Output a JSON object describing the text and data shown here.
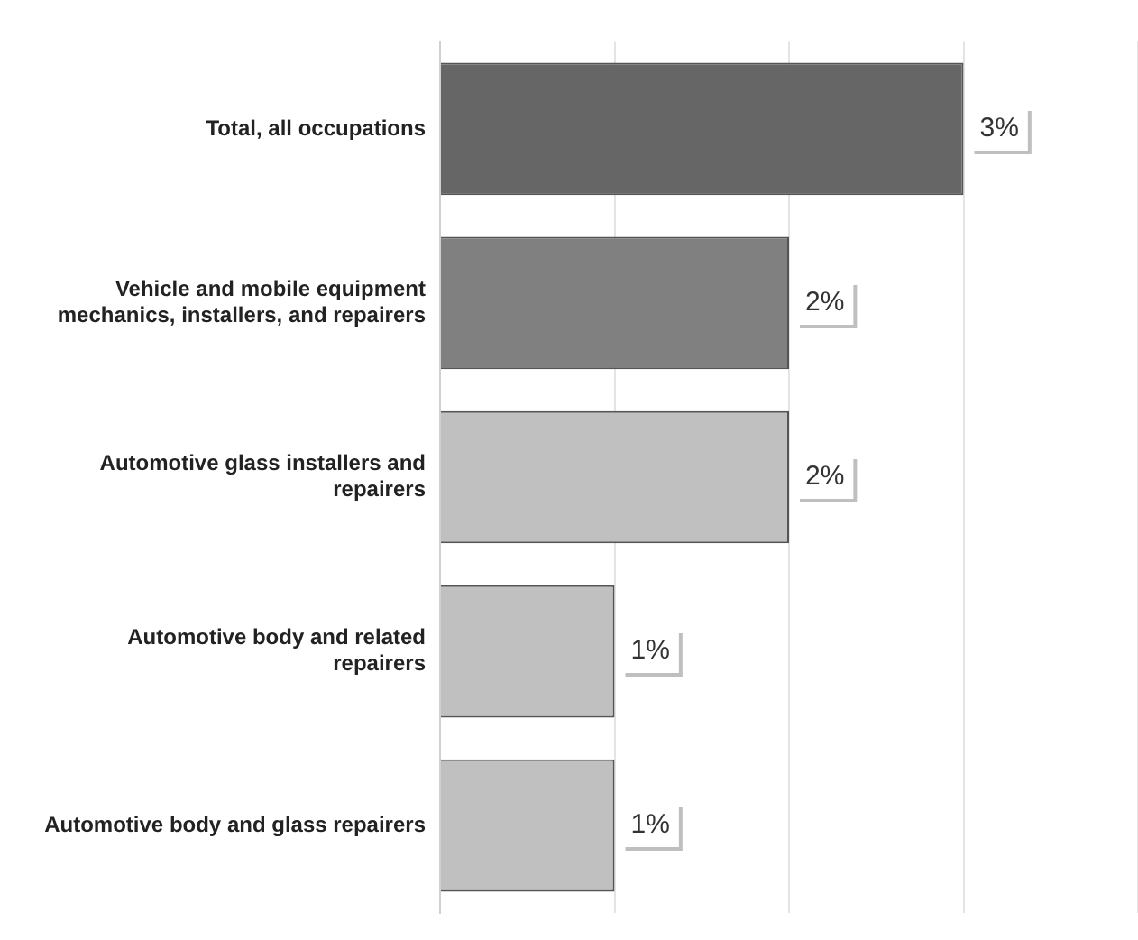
{
  "chart_data": {
    "type": "bar",
    "orientation": "horizontal",
    "categories": [
      "Total, all occupations",
      "Vehicle and mobile equipment mechanics, installers, and repairers",
      "Automotive glass installers and repairers",
      "Automotive body and related repairers",
      "Automotive body and glass repairers"
    ],
    "values": [
      3,
      2,
      2,
      1,
      1
    ],
    "colors": [
      "#666666",
      "#808080",
      "#c0c0c0",
      "#c0c0c0",
      "#c0c0c0"
    ],
    "value_labels": [
      "3%",
      "2%",
      "2%",
      "1%",
      "1%"
    ],
    "xlim": [
      0,
      4
    ],
    "xticks": [
      {
        "value": 0,
        "label": null
      },
      {
        "value": 1,
        "label": null
      },
      {
        "value": 2,
        "label": null
      },
      {
        "value": 3,
        "label": null
      },
      {
        "value": 4,
        "label": null
      }
    ],
    "grid": "x",
    "tick_labels": "y",
    "legend": false
  }
}
